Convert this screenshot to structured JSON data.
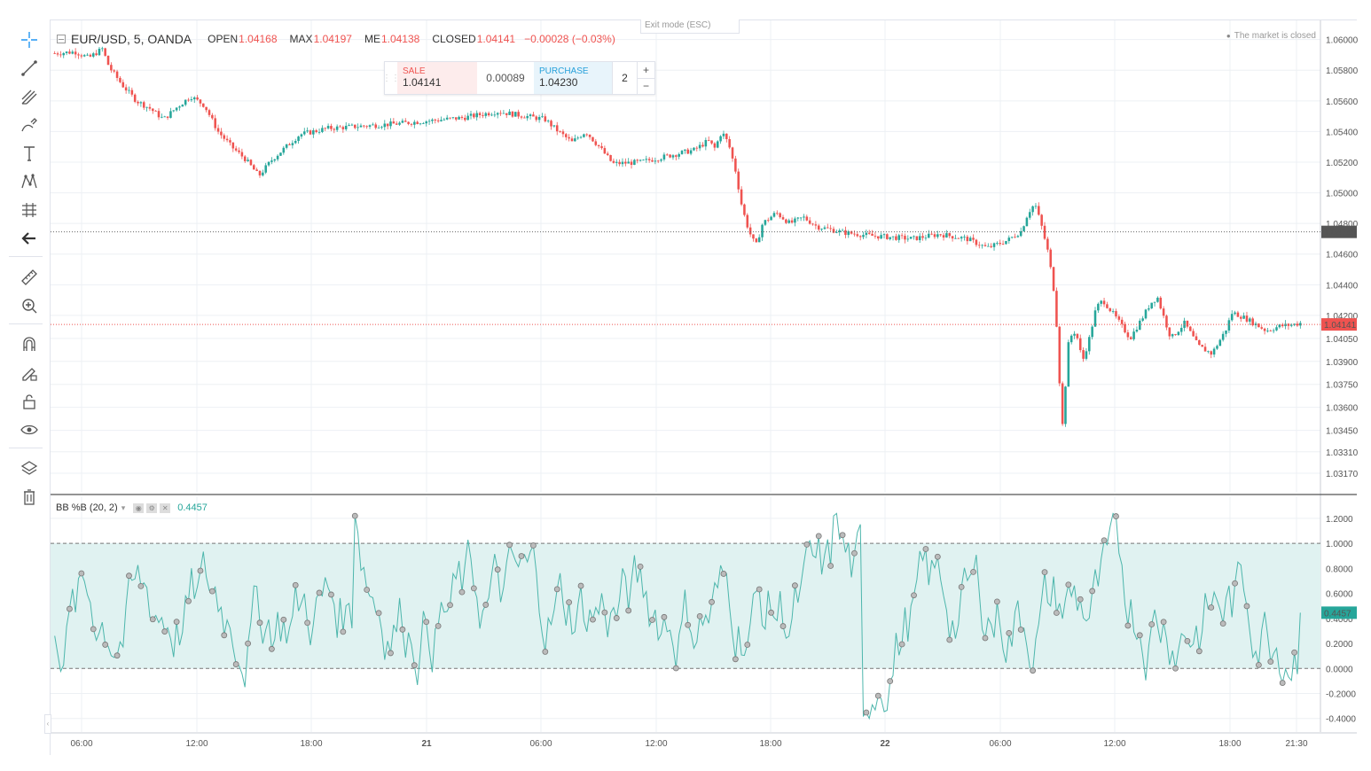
{
  "header": {
    "symbol": "EUR/USD, 5, OANDA",
    "open_label": "OPEN",
    "open_value": "1.04168",
    "high_label": "MAX",
    "high_value": "1.04197",
    "low_label": "ME",
    "low_value": "1.04138",
    "close_label": "CLOSED",
    "close_value": "1.04141",
    "change": "−0.00028 (−0.03%)",
    "exit_mode": "Exit mode (ESC)",
    "market_status": "The market is closed"
  },
  "trade": {
    "sell_label": "SALE",
    "sell_price": "1.04141",
    "spread": "0.00089",
    "buy_label": "PURCHASE",
    "buy_price": "1.04230",
    "quantity": "2",
    "plus": "+",
    "minus": "−"
  },
  "indicator": {
    "name": "BB %B (20, 2)",
    "value": "0.4457"
  },
  "toolbar_icons": [
    "crosshair-icon",
    "trend-line-icon",
    "pitchfork-icon",
    "brush-icon",
    "text-icon",
    "pattern-icon",
    "prediction-icon",
    "back-arrow-icon",
    "ruler-icon",
    "zoom-icon",
    "magnet-icon",
    "lock-drawing-icon",
    "unlock-icon",
    "eye-icon",
    "layers-icon",
    "trash-icon"
  ],
  "colors": {
    "up": "#26a69a",
    "down": "#ef5350",
    "band_fill": "#e0f2f1",
    "ind_line": "#4db6ac"
  },
  "price_axis": {
    "labels": [
      "1.06000",
      "1.05800",
      "1.05600",
      "1.05400",
      "1.05200",
      "1.05000",
      "1.04800",
      "1.04600",
      "1.04400",
      "1.04200",
      "1.04050",
      "1.03900",
      "1.03750",
      "1.03600",
      "1.03450",
      "1.03310",
      "1.03170"
    ],
    "marker_gray": "1.04745",
    "marker_red": "1.04141"
  },
  "ind_axis": {
    "labels": [
      "1.2000",
      "1.0000",
      "0.8000",
      "0.6000",
      "0.4000",
      "0.2000",
      "0.0000",
      "-0.2000",
      "-0.4000"
    ],
    "marker": "0.4457"
  },
  "time_axis": [
    "06:00",
    "12:00",
    "18:00",
    "21",
    "06:00",
    "12:00",
    "18:00",
    "22",
    "06:00",
    "12:00",
    "18:00",
    "21:30"
  ],
  "chart_data": {
    "type": "candlestick",
    "symbol": "EUR/USD",
    "interval": "5",
    "price_range": [
      1.0317,
      1.0605
    ],
    "current_price": 1.04141,
    "gray_line_price": 1.04745,
    "price_path": [
      [
        0,
        1.0591
      ],
      [
        3,
        1.0592
      ],
      [
        5,
        1.0588
      ],
      [
        7,
        1.0594
      ],
      [
        8,
        1.0582
      ],
      [
        10,
        1.057
      ],
      [
        12,
        1.056
      ],
      [
        14,
        1.0555
      ],
      [
        16,
        1.0548
      ],
      [
        18,
        1.0556
      ],
      [
        20,
        1.0563
      ],
      [
        22,
        1.0557
      ],
      [
        24,
        1.054
      ],
      [
        26,
        1.053
      ],
      [
        28,
        1.0522
      ],
      [
        30,
        1.0511
      ],
      [
        32,
        1.0522
      ],
      [
        34,
        1.053
      ],
      [
        36,
        1.0538
      ],
      [
        40,
        1.0542
      ],
      [
        50,
        1.0545
      ],
      [
        60,
        1.0549
      ],
      [
        65,
        1.0553
      ],
      [
        72,
        1.0548
      ],
      [
        74,
        1.054
      ],
      [
        76,
        1.0533
      ],
      [
        78,
        1.054
      ],
      [
        80,
        1.053
      ],
      [
        82,
        1.0519
      ],
      [
        86,
        1.052
      ],
      [
        90,
        1.0524
      ],
      [
        94,
        1.0528
      ],
      [
        96,
        1.0534
      ],
      [
        97,
        1.0529
      ],
      [
        98,
        1.054
      ],
      [
        99,
        1.0532
      ],
      [
        100,
        1.0515
      ],
      [
        101,
        1.049
      ],
      [
        102,
        1.0475
      ],
      [
        103,
        1.0465
      ],
      [
        104,
        1.048
      ],
      [
        106,
        1.0487
      ],
      [
        108,
        1.048
      ],
      [
        110,
        1.0484
      ],
      [
        112,
        1.0478
      ],
      [
        116,
        1.0474
      ],
      [
        120,
        1.0472
      ],
      [
        126,
        1.047
      ],
      [
        130,
        1.0473
      ],
      [
        134,
        1.047
      ],
      [
        137,
        1.0464
      ],
      [
        140,
        1.0469
      ],
      [
        142,
        1.0475
      ],
      [
        143,
        1.0487
      ],
      [
        144,
        1.0493
      ],
      [
        145,
        1.0478
      ],
      [
        146,
        1.046
      ],
      [
        147,
        1.043
      ],
      [
        148,
        1.0345
      ],
      [
        149,
        1.0405
      ],
      [
        150,
        1.041
      ],
      [
        151,
        1.039
      ],
      [
        152,
        1.0405
      ],
      [
        153,
        1.0425
      ],
      [
        154,
        1.043
      ],
      [
        156,
        1.0418
      ],
      [
        158,
        1.0405
      ],
      [
        160,
        1.042
      ],
      [
        161,
        1.0428
      ],
      [
        162,
        1.0432
      ],
      [
        163,
        1.0418
      ],
      [
        164,
        1.0405
      ],
      [
        166,
        1.0415
      ],
      [
        168,
        1.04
      ],
      [
        170,
        1.0395
      ],
      [
        172,
        1.041
      ],
      [
        173,
        1.0422
      ],
      [
        175,
        1.0418
      ],
      [
        178,
        1.041
      ],
      [
        180,
        1.0413
      ],
      [
        182,
        1.0414
      ],
      [
        183,
        1.0415
      ]
    ],
    "indicator_range": [
      -0.48,
      1.32
    ],
    "indicator_bands": [
      0,
      1
    ],
    "indicator_last": 0.4457
  }
}
